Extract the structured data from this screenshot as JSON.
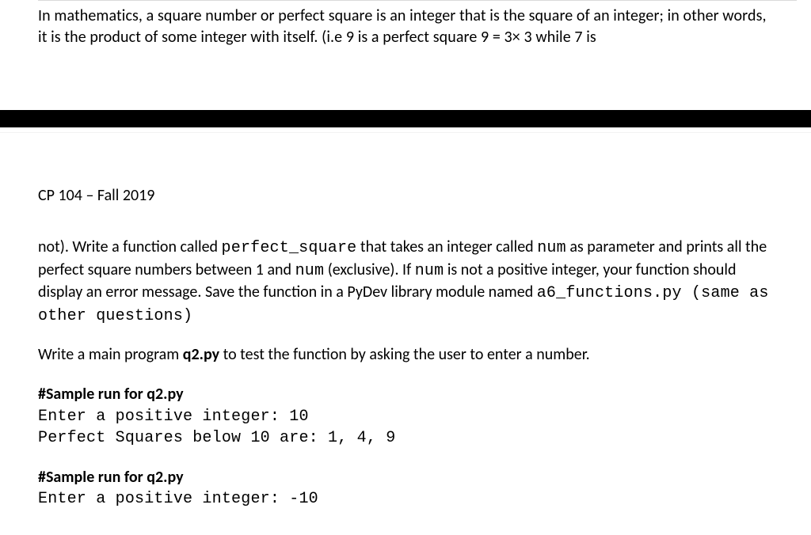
{
  "colors": {
    "text": "#000000",
    "background": "#ffffff",
    "rule": "#d9d9d9",
    "bar": "#000000",
    "thin_line": "#f2f2f2"
  },
  "typography": {
    "body_font": "Calibri",
    "mono_font": "Courier New",
    "body_size_pt": 15,
    "line_height": 1.35
  },
  "intro": {
    "text_before_code": "In mathematics, a square number or perfect square is an integer that is the square of an integer; in other words, it is the product of some integer with itself. (i.e 9 is a perfect square 9 = 3× 3 while 7 is"
  },
  "course_line": "CP 104 – Fall 2019",
  "para1": {
    "t1": "not). Write a function called ",
    "c1": "perfect_square",
    "t2": "  that takes an integer called ",
    "c2": "num",
    "t3": "  as parameter and prints all the perfect square numbers between 1 and ",
    "c3": "num",
    "t4": " (exclusive). If ",
    "c4": "num",
    "t5": "  is not a positive integer, your function should display an error message. Save the function in a PyDev library module named ",
    "c5": "a6_functions.py  (same as other questions)"
  },
  "para2": {
    "t1": "Write a main program ",
    "b1": "q2.py",
    "t2": " to test the function by asking the user to enter a number."
  },
  "sample1": {
    "title": "#Sample run for q2.py",
    "line1": "Enter a positive integer: 10",
    "blank": "",
    "line2": "Perfect Squares below 10 are: 1, 4, 9"
  },
  "sample2": {
    "title": "#Sample run for q2.py",
    "line1": "Enter a positive integer: -10"
  }
}
